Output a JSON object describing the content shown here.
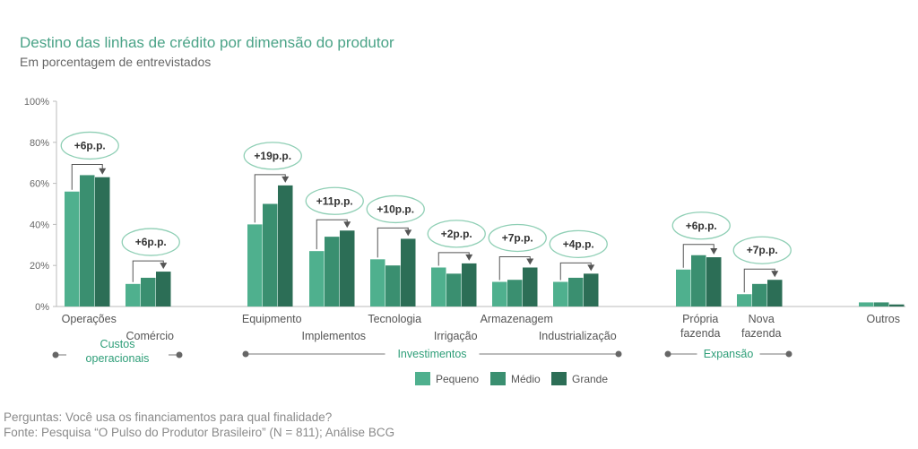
{
  "header": {
    "title": "Destino das linhas de crédito por dimensão do produtor",
    "subtitle": "Em porcentagem de entrevistados"
  },
  "footer": {
    "question": "Perguntas: Você usa os financiamentos para qual finalidade?",
    "source": "Fonte: Pesquisa “O Pulso do Produtor Brasileiro” (N = 811); Análise BCG"
  },
  "colors": {
    "pequeno": "#4fb08e",
    "medio": "#3a8f70",
    "grande": "#2c6e56",
    "accent": "#4aa387",
    "annotation_border": "#8fcfb5"
  },
  "chart_data": {
    "type": "bar",
    "categories": [
      "Operações",
      "Comércio",
      "Equipmento",
      "Implementos",
      "Tecnologia",
      "Irrigação",
      "Armazenagem",
      "Industrialização",
      "Própria fazenda",
      "Nova fazenda",
      "Outros"
    ],
    "series": [
      {
        "name": "Pequeno",
        "values": [
          56,
          11,
          40,
          27,
          23,
          19,
          12,
          12,
          18,
          6,
          2
        ]
      },
      {
        "name": "Médio",
        "values": [
          64,
          14,
          50,
          34,
          20,
          16,
          13,
          14,
          25,
          11,
          2
        ]
      },
      {
        "name": "Grande",
        "values": [
          63,
          17,
          59,
          37,
          33,
          21,
          19,
          16,
          24,
          13,
          1
        ]
      }
    ],
    "annotations": [
      "+6p.p.",
      "+6p.p.",
      "+19p.p.",
      "+11p.p.",
      "+10p.p.",
      "+2p.p.",
      "+7p.p.",
      "+4p.p.",
      "+6p.p.",
      "+7p.p.",
      ""
    ],
    "groups": [
      {
        "label": "Custos operacionais",
        "lines": [
          "Custos",
          "operacionais"
        ]
      },
      {
        "label": "Investimentos",
        "lines": [
          "Investimentos"
        ]
      },
      {
        "label": "Expansão",
        "lines": [
          "Expansão"
        ]
      }
    ],
    "yticks": [
      "0%",
      "20%",
      "40%",
      "60%",
      "80%",
      "100%"
    ],
    "ylim": [
      0,
      100
    ],
    "legend_position": "bottom-center",
    "grid": false
  }
}
